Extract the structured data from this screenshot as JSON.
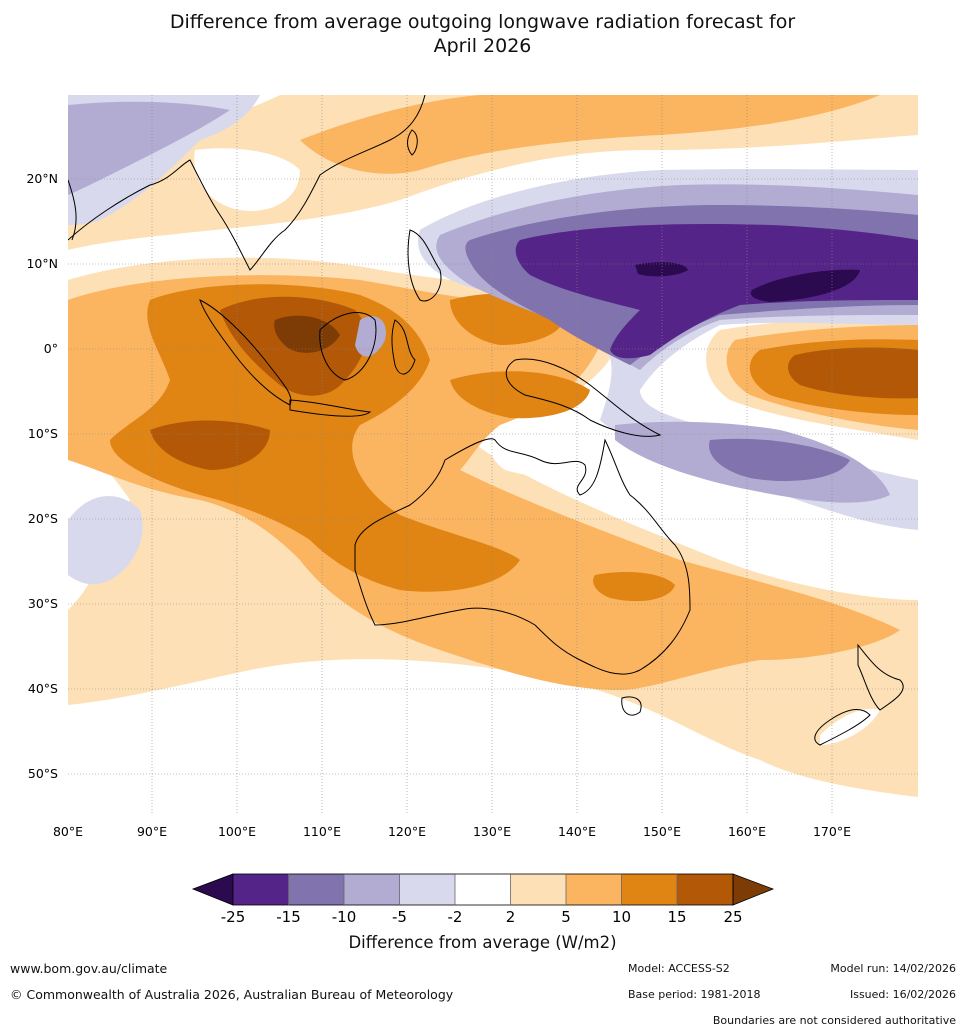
{
  "title_line1": "Difference from average outgoing longwave radiation forecast for",
  "title_line2": "April 2026",
  "lon_ticks": [
    "80°E",
    "90°E",
    "100°E",
    "110°E",
    "120°E",
    "130°E",
    "140°E",
    "150°E",
    "160°E",
    "170°E"
  ],
  "lat_ticks": [
    "20°N",
    "10°N",
    "0°",
    "10°S",
    "20°S",
    "30°S",
    "40°S",
    "50°S"
  ],
  "legend": {
    "title": "Difference from average (W/m2)",
    "labels": [
      "-25",
      "-15",
      "-10",
      "-5",
      "-2",
      "2",
      "5",
      "10",
      "15",
      "25"
    ],
    "colors": [
      "#2b0a4f",
      "#542488",
      "#8173ad",
      "#b2acd2",
      "#d8d9ec",
      "#ffffff",
      "#fde0b6",
      "#fbb45f",
      "#e08413",
      "#b35807",
      "#7d3b05"
    ]
  },
  "footer": {
    "website": "www.bom.gov.au/climate",
    "copyright": "© Commonwealth of Australia 2026, Australian Bureau of Meteorology",
    "model": "Model: ACCESS-S2",
    "base_period": "Base period: 1981-2018",
    "model_run": "Model run: 14/02/2026",
    "issued": "Issued: 16/02/2026",
    "disclaimer": "Boundaries are not considered authoritative"
  }
}
